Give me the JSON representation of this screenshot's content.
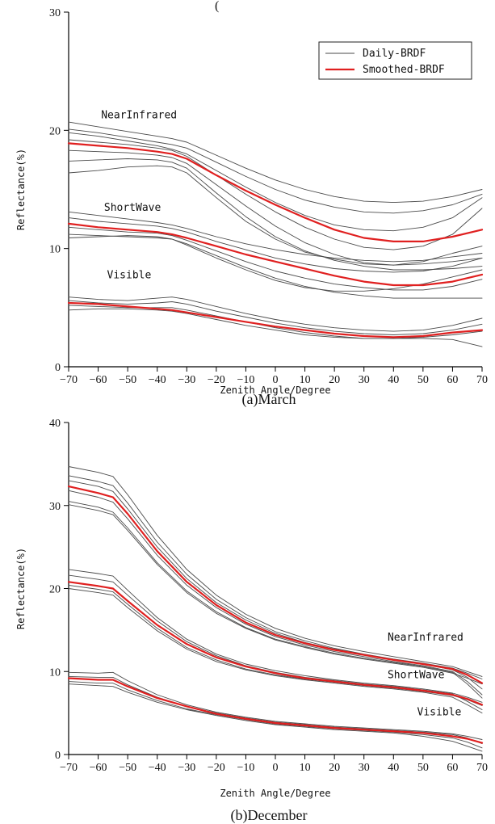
{
  "top_fragment": "(",
  "chart_data": [
    {
      "type": "line",
      "caption": "(a)March",
      "xlabel": "Zenith Angle/Degree",
      "ylabel": "Reflectance(%)",
      "xlim": [
        -70,
        70
      ],
      "ylim": [
        0,
        30
      ],
      "xticks": [
        -70,
        -60,
        -50,
        -40,
        -30,
        -20,
        -10,
        0,
        10,
        20,
        30,
        40,
        50,
        60,
        70
      ],
      "yticks": [
        0,
        10,
        20,
        30
      ],
      "legend": {
        "position": "top-right",
        "entries": [
          {
            "name": "Daily-BRDF",
            "color": "#4a4a4a"
          },
          {
            "name": "Smoothed-BRDF",
            "color": "#e02020"
          }
        ]
      },
      "band_labels": [
        {
          "text": "NearInfrared",
          "x": -59,
          "y": 21.0
        },
        {
          "text": "ShortWave",
          "x": -58,
          "y": 13.2
        },
        {
          "text": "Visible",
          "x": -57,
          "y": 7.5
        }
      ],
      "x": [
        -70,
        -60,
        -50,
        -40,
        -35,
        -30,
        -20,
        -10,
        0,
        10,
        20,
        30,
        40,
        50,
        60,
        70
      ],
      "series": [
        {
          "name": "Smoothed-BRDF",
          "band": "NearInfrared",
          "color": "#e02020",
          "values": [
            18.9,
            18.7,
            18.5,
            18.2,
            18.0,
            17.6,
            16.2,
            14.9,
            13.7,
            12.6,
            11.6,
            10.9,
            10.6,
            10.6,
            11.0,
            11.6
          ]
        },
        {
          "name": "Smoothed-BRDF",
          "band": "ShortWave",
          "color": "#e02020",
          "values": [
            12.1,
            11.8,
            11.6,
            11.4,
            11.2,
            10.9,
            10.2,
            9.5,
            8.9,
            8.3,
            7.7,
            7.2,
            6.9,
            6.9,
            7.2,
            7.8
          ]
        },
        {
          "name": "Smoothed-BRDF",
          "band": "Visible",
          "color": "#e02020",
          "values": [
            5.4,
            5.3,
            5.1,
            4.9,
            4.8,
            4.6,
            4.2,
            3.8,
            3.4,
            3.1,
            2.8,
            2.6,
            2.5,
            2.6,
            2.9,
            3.1
          ]
        },
        {
          "name": "Daily-BRDF",
          "band": "NearInfrared",
          "color": "#4a4a4a",
          "values": [
            20.7,
            20.3,
            19.9,
            19.5,
            19.3,
            19.0,
            17.9,
            16.8,
            15.8,
            15.0,
            14.4,
            14.0,
            13.9,
            14.0,
            14.4,
            15.0
          ]
        },
        {
          "name": "Daily-BRDF",
          "band": "NearInfrared",
          "color": "#4a4a4a",
          "values": [
            20.1,
            19.8,
            19.4,
            19.0,
            18.8,
            18.5,
            17.3,
            16.1,
            15.0,
            14.1,
            13.5,
            13.1,
            13.0,
            13.2,
            13.7,
            14.6
          ]
        },
        {
          "name": "Daily-BRDF",
          "band": "NearInfrared",
          "color": "#4a4a4a",
          "values": [
            19.8,
            19.5,
            19.1,
            18.7,
            18.4,
            18.0,
            16.6,
            15.2,
            13.9,
            12.8,
            12.0,
            11.6,
            11.5,
            11.8,
            12.6,
            14.3
          ]
        },
        {
          "name": "Daily-BRDF",
          "band": "NearInfrared",
          "color": "#4a4a4a",
          "values": [
            19.2,
            19.0,
            18.8,
            18.5,
            18.3,
            17.8,
            16.2,
            14.6,
            13.1,
            11.8,
            10.8,
            10.1,
            9.9,
            10.2,
            11.2,
            13.4
          ]
        },
        {
          "name": "Daily-BRDF",
          "band": "NearInfrared",
          "color": "#4a4a4a",
          "values": [
            18.3,
            18.2,
            18.1,
            17.9,
            17.7,
            17.2,
            15.4,
            13.6,
            11.9,
            10.5,
            9.5,
            8.8,
            8.6,
            8.9,
            9.6,
            10.2
          ]
        },
        {
          "name": "Daily-BRDF",
          "band": "NearInfrared",
          "color": "#4a4a4a",
          "values": [
            17.4,
            17.5,
            17.6,
            17.5,
            17.3,
            16.8,
            14.7,
            12.7,
            11.0,
            9.8,
            9.0,
            8.5,
            8.2,
            8.2,
            8.3,
            8.5
          ]
        },
        {
          "name": "Daily-BRDF",
          "band": "NearInfrared",
          "color": "#4a4a4a",
          "values": [
            16.4,
            16.6,
            16.9,
            17.0,
            16.9,
            16.4,
            14.3,
            12.3,
            10.8,
            9.7,
            9.1,
            8.7,
            8.6,
            8.7,
            8.9,
            9.2
          ]
        },
        {
          "name": "Daily-BRDF",
          "band": "ShortWave",
          "color": "#4a4a4a",
          "values": [
            13.1,
            12.8,
            12.5,
            12.2,
            12.0,
            11.7,
            11.0,
            10.4,
            9.9,
            9.5,
            9.2,
            9.0,
            8.9,
            9.0,
            9.3,
            9.6
          ]
        },
        {
          "name": "Daily-BRDF",
          "band": "ShortWave",
          "color": "#4a4a4a",
          "values": [
            12.6,
            12.3,
            12.1,
            11.9,
            11.7,
            11.4,
            10.6,
            9.9,
            9.2,
            8.7,
            8.3,
            8.1,
            8.0,
            8.1,
            8.5,
            9.2
          ]
        },
        {
          "name": "Daily-BRDF",
          "band": "ShortWave",
          "color": "#4a4a4a",
          "values": [
            11.8,
            11.6,
            11.4,
            11.3,
            11.1,
            10.7,
            9.8,
            8.9,
            8.1,
            7.5,
            7.0,
            6.7,
            6.5,
            6.5,
            6.8,
            7.4
          ]
        },
        {
          "name": "Daily-BRDF",
          "band": "ShortWave",
          "color": "#4a4a4a",
          "values": [
            11.2,
            11.1,
            11.0,
            10.9,
            10.8,
            10.4,
            9.4,
            8.4,
            7.5,
            6.8,
            6.3,
            6.0,
            5.8,
            5.8,
            5.8,
            5.8
          ]
        },
        {
          "name": "Daily-BRDF",
          "band": "ShortWave",
          "color": "#4a4a4a",
          "values": [
            10.9,
            11.0,
            11.1,
            11.0,
            10.8,
            10.3,
            9.2,
            8.2,
            7.3,
            6.7,
            6.4,
            6.4,
            6.6,
            7.0,
            7.6,
            8.2
          ]
        },
        {
          "name": "Daily-BRDF",
          "band": "Visible",
          "color": "#4a4a4a",
          "values": [
            5.9,
            5.7,
            5.6,
            5.8,
            5.9,
            5.7,
            5.1,
            4.5,
            4.0,
            3.6,
            3.3,
            3.1,
            3.0,
            3.1,
            3.5,
            4.1
          ]
        },
        {
          "name": "Daily-BRDF",
          "band": "Visible",
          "color": "#4a4a4a",
          "values": [
            5.6,
            5.4,
            5.3,
            5.4,
            5.5,
            5.3,
            4.7,
            4.2,
            3.7,
            3.3,
            3.0,
            2.8,
            2.7,
            2.8,
            3.1,
            3.6
          ]
        },
        {
          "name": "Daily-BRDF",
          "band": "Visible",
          "color": "#4a4a4a",
          "values": [
            5.2,
            5.1,
            5.0,
            5.0,
            5.0,
            4.8,
            4.3,
            3.8,
            3.3,
            2.9,
            2.6,
            2.4,
            2.4,
            2.5,
            2.7,
            3.0
          ]
        },
        {
          "name": "Daily-BRDF",
          "band": "Visible",
          "color": "#4a4a4a",
          "values": [
            4.8,
            4.9,
            4.9,
            4.8,
            4.7,
            4.5,
            4.0,
            3.5,
            3.1,
            2.7,
            2.5,
            2.4,
            2.4,
            2.4,
            2.3,
            1.7
          ]
        }
      ]
    },
    {
      "type": "line",
      "caption": "(b)December",
      "xlabel": "Zenith Angle/Degree",
      "ylabel": "Reflectance(%)",
      "xlim": [
        -70,
        70
      ],
      "ylim": [
        0,
        40
      ],
      "xticks": [
        -70,
        -60,
        -50,
        -40,
        -30,
        -20,
        -10,
        0,
        10,
        20,
        30,
        40,
        50,
        60,
        70
      ],
      "yticks": [
        0,
        10,
        20,
        30,
        40
      ],
      "band_labels": [
        {
          "text": "NearInfrared",
          "x": 38,
          "y": 13.7
        },
        {
          "text": "ShortWave",
          "x": 38,
          "y": 9.2
        },
        {
          "text": "Visible",
          "x": 48,
          "y": 4.7
        }
      ],
      "x": [
        -70,
        -60,
        -55,
        -50,
        -40,
        -30,
        -20,
        -10,
        0,
        10,
        20,
        30,
        40,
        50,
        60,
        65,
        70
      ],
      "series": [
        {
          "name": "Smoothed-BRDF",
          "band": "NearInfrared",
          "color": "#e02020",
          "values": [
            32.3,
            31.5,
            31.0,
            29.0,
            24.5,
            20.8,
            18.0,
            15.9,
            14.4,
            13.4,
            12.6,
            12.0,
            11.4,
            10.9,
            10.3,
            9.6,
            8.6
          ]
        },
        {
          "name": "Smoothed-BRDF",
          "band": "ShortWave",
          "color": "#e02020",
          "values": [
            20.8,
            20.3,
            20.0,
            18.5,
            15.6,
            13.3,
            11.7,
            10.6,
            9.8,
            9.2,
            8.8,
            8.4,
            8.1,
            7.7,
            7.2,
            6.7,
            6.0
          ]
        },
        {
          "name": "Smoothed-BRDF",
          "band": "Visible",
          "color": "#e02020",
          "values": [
            9.2,
            9.0,
            9.0,
            8.2,
            6.8,
            5.8,
            4.9,
            4.3,
            3.8,
            3.5,
            3.2,
            3.0,
            2.8,
            2.6,
            2.2,
            1.9,
            1.4
          ]
        },
        {
          "name": "Daily-BRDF",
          "band": "NearInfrared",
          "color": "#4a4a4a",
          "values": [
            34.7,
            34.0,
            33.5,
            31.3,
            26.4,
            22.3,
            19.2,
            16.9,
            15.2,
            14.0,
            13.1,
            12.4,
            11.8,
            11.2,
            10.6,
            10.0,
            9.4
          ]
        },
        {
          "name": "Daily-BRDF",
          "band": "NearInfrared",
          "color": "#4a4a4a",
          "values": [
            33.6,
            32.9,
            32.4,
            30.3,
            25.6,
            21.7,
            18.7,
            16.5,
            14.8,
            13.7,
            12.8,
            12.1,
            11.5,
            11.0,
            10.4,
            9.8,
            9.1
          ]
        },
        {
          "name": "Daily-BRDF",
          "band": "NearInfrared",
          "color": "#4a4a4a",
          "values": [
            33.0,
            32.3,
            31.7,
            29.6,
            25.0,
            21.2,
            18.3,
            16.2,
            14.6,
            13.5,
            12.7,
            12.0,
            11.4,
            10.9,
            10.2,
            9.3,
            7.9
          ]
        },
        {
          "name": "Daily-BRDF",
          "band": "NearInfrared",
          "color": "#4a4a4a",
          "values": [
            31.8,
            31.0,
            30.4,
            28.4,
            24.0,
            20.4,
            17.7,
            15.7,
            14.2,
            13.2,
            12.4,
            11.8,
            11.2,
            10.7,
            10.0,
            8.8,
            7.2
          ]
        },
        {
          "name": "Daily-BRDF",
          "band": "NearInfrared",
          "color": "#4a4a4a",
          "values": [
            30.5,
            29.8,
            29.2,
            27.3,
            23.1,
            19.7,
            17.2,
            15.3,
            13.9,
            13.0,
            12.2,
            11.6,
            11.1,
            10.6,
            9.9,
            8.5,
            6.8
          ]
        },
        {
          "name": "Daily-BRDF",
          "band": "NearInfrared",
          "color": "#4a4a4a",
          "values": [
            30.1,
            29.4,
            28.9,
            27.0,
            22.9,
            19.5,
            17.0,
            15.2,
            13.8,
            12.9,
            12.1,
            11.5,
            11.0,
            10.5,
            9.8,
            9.2,
            8.5
          ]
        },
        {
          "name": "Daily-BRDF",
          "band": "ShortWave",
          "color": "#4a4a4a",
          "values": [
            22.3,
            21.8,
            21.5,
            19.8,
            16.5,
            13.9,
            12.1,
            10.9,
            10.1,
            9.5,
            9.0,
            8.6,
            8.3,
            7.9,
            7.4,
            6.9,
            6.3
          ]
        },
        {
          "name": "Daily-BRDF",
          "band": "ShortWave",
          "color": "#4a4a4a",
          "values": [
            21.6,
            21.1,
            20.8,
            19.2,
            16.1,
            13.6,
            11.9,
            10.7,
            9.9,
            9.3,
            8.9,
            8.5,
            8.2,
            7.8,
            7.3,
            6.4,
            5.4
          ]
        },
        {
          "name": "Daily-BRDF",
          "band": "ShortWave",
          "color": "#4a4a4a",
          "values": [
            20.4,
            19.9,
            19.6,
            18.1,
            15.2,
            12.9,
            11.4,
            10.3,
            9.6,
            9.1,
            8.7,
            8.3,
            8.0,
            7.6,
            7.1,
            6.6,
            5.9
          ]
        },
        {
          "name": "Daily-BRDF",
          "band": "ShortWave",
          "color": "#4a4a4a",
          "values": [
            20.0,
            19.5,
            19.2,
            17.7,
            14.9,
            12.7,
            11.2,
            10.2,
            9.5,
            9.0,
            8.6,
            8.2,
            7.9,
            7.5,
            6.9,
            6.0,
            5.0
          ]
        },
        {
          "name": "Daily-BRDF",
          "band": "Visible",
          "color": "#4a4a4a",
          "values": [
            9.9,
            9.8,
            9.9,
            8.9,
            7.2,
            6.0,
            5.1,
            4.5,
            4.0,
            3.7,
            3.4,
            3.2,
            3.0,
            2.8,
            2.5,
            2.2,
            1.8
          ]
        },
        {
          "name": "Daily-BRDF",
          "band": "Visible",
          "color": "#4a4a4a",
          "values": [
            9.4,
            9.3,
            9.3,
            8.4,
            6.9,
            5.8,
            5.0,
            4.4,
            3.9,
            3.6,
            3.3,
            3.1,
            2.9,
            2.7,
            2.4,
            2.0,
            1.3
          ]
        },
        {
          "name": "Daily-BRDF",
          "band": "Visible",
          "color": "#4a4a4a",
          "values": [
            8.8,
            8.6,
            8.6,
            7.8,
            6.5,
            5.5,
            4.8,
            4.2,
            3.7,
            3.4,
            3.1,
            2.9,
            2.7,
            2.4,
            2.0,
            1.5,
            0.8
          ]
        },
        {
          "name": "Daily-BRDF",
          "band": "Visible",
          "color": "#4a4a4a",
          "values": [
            8.5,
            8.3,
            8.2,
            7.5,
            6.3,
            5.4,
            4.7,
            4.1,
            3.6,
            3.3,
            3.0,
            2.8,
            2.6,
            2.2,
            1.6,
            1.0,
            0.4
          ]
        }
      ]
    }
  ]
}
